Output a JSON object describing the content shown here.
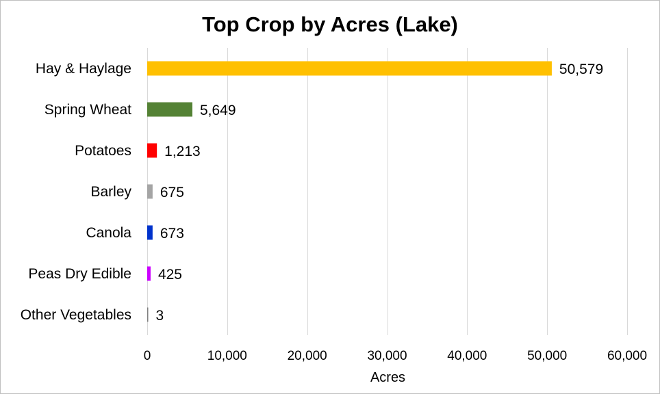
{
  "chart_data": {
    "type": "bar",
    "orientation": "horizontal",
    "title": "Top Crop by Acres (Lake)",
    "xlabel": "Acres",
    "ylabel": "",
    "categories": [
      "Hay & Haylage",
      "Spring Wheat",
      "Potatoes",
      "Barley",
      "Canola",
      "Peas Dry Edible",
      "Other Vegetables"
    ],
    "values": [
      50579,
      5649,
      1213,
      675,
      673,
      425,
      3
    ],
    "value_labels": [
      "50,579",
      "5,649",
      "1,213",
      "675",
      "673",
      "425",
      "3"
    ],
    "colors": [
      "#FFC000",
      "#548235",
      "#FF0000",
      "#A5A5A5",
      "#0033CC",
      "#CC00FF",
      "#7F7F7F"
    ],
    "xlim": [
      0,
      60000
    ],
    "xticks": [
      0,
      10000,
      20000,
      30000,
      40000,
      50000,
      60000
    ],
    "xtick_labels": [
      "0",
      "10,000",
      "20,000",
      "30,000",
      "40,000",
      "50,000",
      "60,000"
    ],
    "grid": "vertical",
    "legend": "none"
  }
}
